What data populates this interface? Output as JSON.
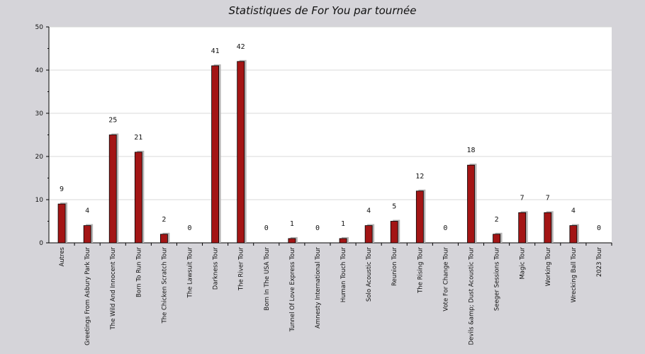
{
  "chart_data": {
    "type": "bar",
    "title": "Statistiques de For You par tournée",
    "xlabel": "",
    "ylabel": "",
    "ylim": [
      0,
      50
    ],
    "yticks": [
      0,
      10,
      20,
      30,
      40,
      50
    ],
    "grid": true,
    "categories": [
      "Autres",
      "Greetings From Asbury Park Tour",
      "The Wild And Innocent Tour",
      "Born To Run Tour",
      "The Chicken Scratch Tour",
      "The Lawsuit Tour",
      "Darkness Tour",
      "The River Tour",
      "Born In The USA Tour",
      "Tunnel Of Love Express Tour",
      "Amnesty International Tour",
      "Human Touch Tour",
      "Solo Acoustic Tour",
      "Reunion Tour",
      "The Rising Tour",
      "Vote For Change Tour",
      "Devils &amp; Dust Acoustic Tour",
      "Seeger Sessions Tour",
      "Magic Tour",
      "Working Tour",
      "Wrecking Ball Tour",
      "2023 Tour"
    ],
    "values": [
      9,
      4,
      25,
      21,
      2,
      0,
      41,
      42,
      0,
      1,
      0,
      1,
      4,
      5,
      12,
      0,
      18,
      2,
      7,
      7,
      4,
      0
    ]
  },
  "colors": {
    "bar": "#a31515",
    "bar_shadow": "#b5b3b3",
    "plot_bg": "#ffffff",
    "page_bg": "#d5d4d9",
    "grid": "#d8d8d8",
    "axis": "#000000"
  }
}
